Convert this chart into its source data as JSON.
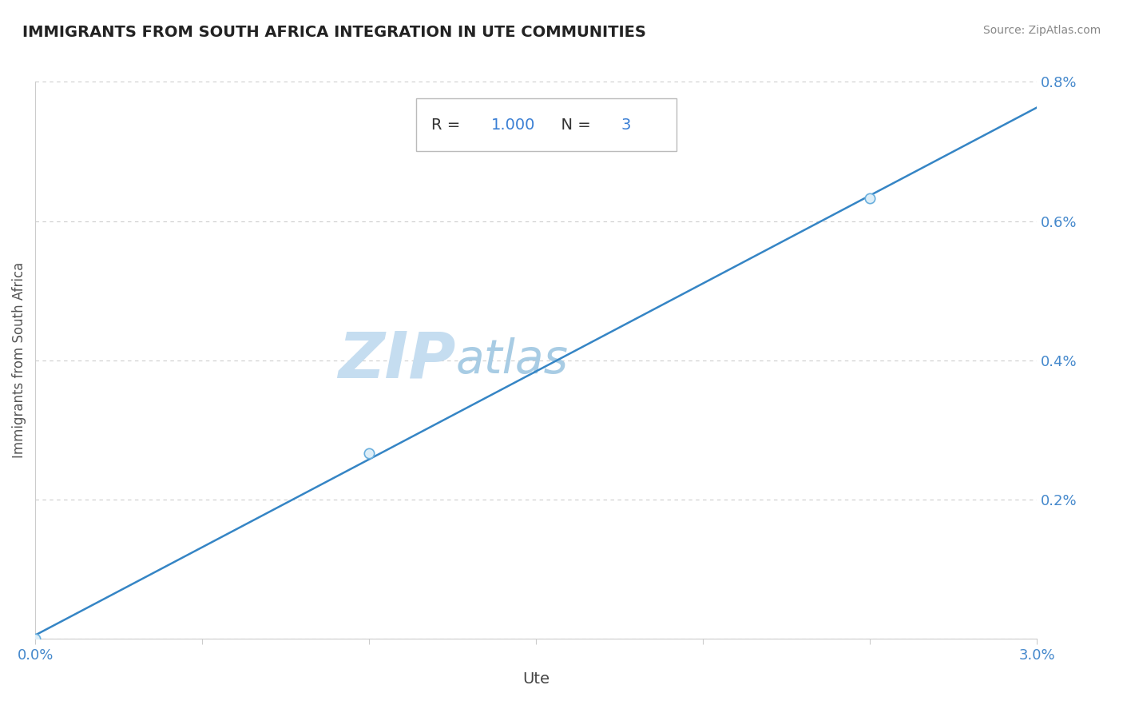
{
  "title": "IMMIGRANTS FROM SOUTH AFRICA INTEGRATION IN UTE COMMUNITIES",
  "source_text": "Source: ZipAtlas.com",
  "xlabel": "Ute",
  "ylabel": "Immigrants from South Africa",
  "watermark_zip": "ZIP",
  "watermark_atlas": "atlas",
  "R_value": "1.000",
  "N_value": "3",
  "x_data": [
    0.0,
    1.0,
    2.5
  ],
  "y_data": [
    0.0,
    0.2667,
    0.6333
  ],
  "xlim": [
    0.0,
    3.0
  ],
  "ylim": [
    0.0,
    0.8
  ],
  "x_ticks": [
    0.0,
    0.5,
    1.0,
    1.5,
    2.0,
    2.5,
    3.0
  ],
  "y_ticks": [
    0.0,
    0.2,
    0.4,
    0.6,
    0.8
  ],
  "line_color": "#3585c5",
  "point_fill_color": "#ddeef8",
  "point_edge_color": "#6aafdd",
  "grid_color": "#cccccc",
  "title_color": "#222222",
  "watermark_zip_color": "#c5ddf0",
  "watermark_atlas_color": "#a8cce4",
  "source_color": "#888888",
  "ylabel_color": "#555555",
  "xlabel_color": "#444444",
  "tick_label_color": "#4488cc",
  "background_color": "#ffffff",
  "annotation_text_color": "#333333",
  "annotation_val_color": "#3a7fd4",
  "figsize": [
    14.06,
    8.92
  ],
  "dpi": 100
}
